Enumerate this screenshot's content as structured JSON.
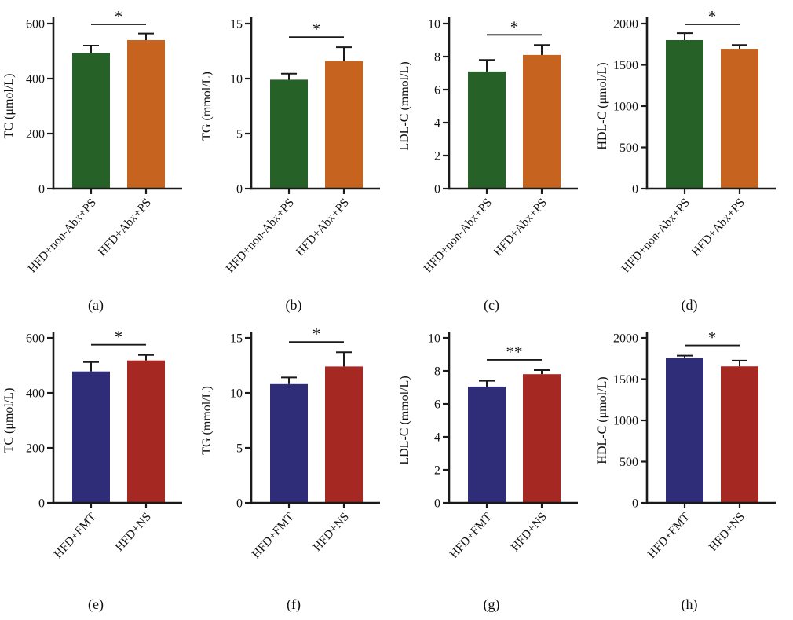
{
  "figure": {
    "description": "Serum lipid bar charts comparing treatment groups",
    "axis_color": "#1a1a1a",
    "background_color": "#ffffff",
    "group_colors": {
      "HFD+non-Abx+PS": "#266128",
      "HFD+Abx+PS": "#c6641f",
      "HFD+FMT": "#2f2d78",
      "HFD+NS": "#a62823"
    }
  },
  "chart_data": [
    {
      "id": "a",
      "caption": "(a)",
      "type": "bar",
      "ylabel": "TC (μmol/L)",
      "xlabel": "",
      "ylim": [
        0,
        600
      ],
      "yticks": [
        0,
        200,
        400,
        600
      ],
      "categories": [
        "HFD+non-Abx+PS",
        "HFD+Abx+PS"
      ],
      "values": [
        493,
        540
      ],
      "errors": [
        27,
        24
      ],
      "bar_colors": [
        "#266128",
        "#c6641f"
      ],
      "significance": "*",
      "grid": false,
      "legend": "none"
    },
    {
      "id": "b",
      "caption": "(b)",
      "type": "bar",
      "ylabel": "TG (mmol/L)",
      "xlabel": "",
      "ylim": [
        0,
        15
      ],
      "yticks": [
        0,
        5,
        10,
        15
      ],
      "categories": [
        "HFD+non-Abx+PS",
        "HFD+Abx+PS"
      ],
      "values": [
        9.9,
        11.6
      ],
      "errors": [
        0.55,
        1.25
      ],
      "bar_colors": [
        "#266128",
        "#c6641f"
      ],
      "significance": "*",
      "grid": false,
      "legend": "none"
    },
    {
      "id": "c",
      "caption": "(c)",
      "type": "bar",
      "ylabel": "LDL-C (mmol/L)",
      "xlabel": "",
      "ylim": [
        0,
        10
      ],
      "yticks": [
        0,
        2,
        4,
        6,
        8,
        10
      ],
      "categories": [
        "HFD+non-Abx+PS",
        "HFD+Abx+PS"
      ],
      "values": [
        7.1,
        8.1
      ],
      "errors": [
        0.7,
        0.6
      ],
      "bar_colors": [
        "#266128",
        "#c6641f"
      ],
      "significance": "*",
      "grid": false,
      "legend": "none"
    },
    {
      "id": "d",
      "caption": "(d)",
      "type": "bar",
      "ylabel": "HDL-C (μmol/L)",
      "xlabel": "",
      "ylim": [
        0,
        2000
      ],
      "yticks": [
        0,
        500,
        1000,
        1500,
        2000
      ],
      "categories": [
        "HFD+non-Abx+PS",
        "HFD+Abx+PS"
      ],
      "values": [
        1800,
        1695
      ],
      "errors": [
        85,
        45
      ],
      "bar_colors": [
        "#266128",
        "#c6641f"
      ],
      "significance": "*",
      "grid": false,
      "legend": "none"
    },
    {
      "id": "e",
      "caption": "(e)",
      "type": "bar",
      "ylabel": "TC (μmol/L)",
      "xlabel": "",
      "ylim": [
        0,
        600
      ],
      "yticks": [
        0,
        200,
        400,
        600
      ],
      "categories": [
        "HFD+FMT",
        "HFD+NS"
      ],
      "values": [
        478,
        518
      ],
      "errors": [
        34,
        20
      ],
      "bar_colors": [
        "#2f2d78",
        "#a62823"
      ],
      "significance": "*",
      "grid": false,
      "legend": "none"
    },
    {
      "id": "f",
      "caption": "(f)",
      "type": "bar",
      "ylabel": "TG (mmol/L)",
      "xlabel": "",
      "ylim": [
        0,
        15
      ],
      "yticks": [
        0,
        5,
        10,
        15
      ],
      "categories": [
        "HFD+FMT",
        "HFD+NS"
      ],
      "values": [
        10.8,
        12.4
      ],
      "errors": [
        0.6,
        1.3
      ],
      "bar_colors": [
        "#2f2d78",
        "#a62823"
      ],
      "significance": "*",
      "grid": false,
      "legend": "none"
    },
    {
      "id": "g",
      "caption": "(g)",
      "type": "bar",
      "ylabel": "LDL-C (mmol/L)",
      "xlabel": "",
      "ylim": [
        0,
        10
      ],
      "yticks": [
        0,
        2,
        4,
        6,
        8,
        10
      ],
      "categories": [
        "HFD+FMT",
        "HFD+NS"
      ],
      "values": [
        7.05,
        7.8
      ],
      "errors": [
        0.35,
        0.25
      ],
      "bar_colors": [
        "#2f2d78",
        "#a62823"
      ],
      "significance": "**",
      "grid": false,
      "legend": "none"
    },
    {
      "id": "h",
      "caption": "(h)",
      "type": "bar",
      "ylabel": "HDL-C (μmol/L)",
      "xlabel": "",
      "ylim": [
        0,
        2000
      ],
      "yticks": [
        0,
        500,
        1000,
        1500,
        2000
      ],
      "categories": [
        "HFD+FMT",
        "HFD+NS"
      ],
      "values": [
        1760,
        1655
      ],
      "errors": [
        25,
        70
      ],
      "bar_colors": [
        "#2f2d78",
        "#a62823"
      ],
      "significance": "*",
      "grid": false,
      "legend": "none"
    }
  ]
}
